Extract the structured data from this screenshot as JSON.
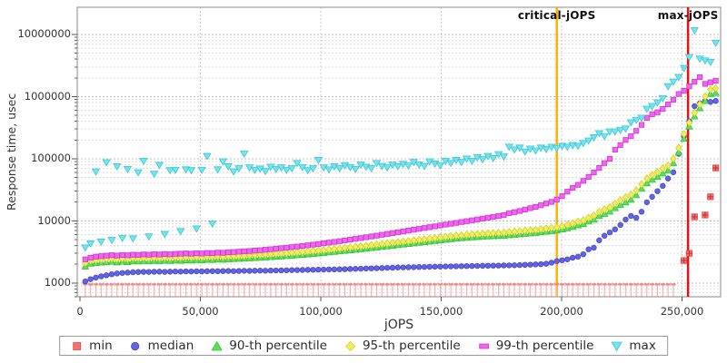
{
  "chart_data": {
    "type": "scatter",
    "title": "",
    "x_axis": {
      "label": "jOPS",
      "min": 0,
      "max": 267000,
      "ticks": [
        0,
        50000,
        100000,
        150000,
        200000,
        250000
      ],
      "tick_labels": [
        "0",
        "50,000",
        "100,000",
        "150,000",
        "200,000",
        "250,000"
      ],
      "grid": true
    },
    "y_axis": {
      "label": "Response time, usec",
      "scale": "log",
      "min": 600,
      "max": 27400000,
      "ticks": [
        1000,
        10000,
        100000,
        1000000,
        10000000
      ],
      "tick_labels": [
        "1000",
        "10000",
        "100000",
        "1000000",
        "10000000"
      ],
      "grid": true
    },
    "annotations": [
      {
        "label": "critical-jOPS",
        "x": 198000,
        "color": "#ffb000"
      },
      {
        "label": "max-jOPS",
        "x": 252500,
        "color": "#e01212"
      }
    ],
    "legend_position": "bottom-center",
    "jops": {
      "start": 2200,
      "step": 2200,
      "count": 120
    },
    "series": [
      {
        "name": "min",
        "marker": "impulse-square",
        "legend_marker": "square",
        "color": "#f87070",
        "stroke": "#e04848",
        "stem_color": "#ffb0b0",
        "cap_color": "#f08080",
        "cross_color": "#c03030",
        "values": [
          950,
          950,
          950,
          950,
          950,
          950,
          950,
          950,
          950,
          950,
          950,
          950,
          950,
          950,
          950,
          950,
          950,
          950,
          950,
          950,
          950,
          950,
          950,
          950,
          950,
          950,
          950,
          950,
          950,
          950,
          950,
          950,
          950,
          950,
          950,
          950,
          950,
          950,
          950,
          950,
          950,
          950,
          950,
          950,
          950,
          950,
          950,
          950,
          950,
          950,
          950,
          950,
          950,
          950,
          950,
          950,
          950,
          950,
          950,
          950,
          950,
          950,
          950,
          950,
          950,
          950,
          950,
          950,
          950,
          950,
          950,
          950,
          950,
          950,
          950,
          950,
          950,
          950,
          950,
          950,
          950,
          950,
          950,
          950,
          950,
          950,
          950,
          950,
          950,
          950,
          950,
          950,
          950,
          950,
          950,
          950,
          950,
          950,
          950,
          950,
          950,
          950,
          950,
          950,
          950,
          950,
          950,
          950,
          950,
          950,
          950,
          950,
          null,
          2300,
          3000,
          11600,
          null,
          12400,
          24400,
          71000
        ]
      },
      {
        "name": "median",
        "marker": "circle",
        "legend_marker": "circle",
        "color": "#6464e0",
        "stroke": "#4646c8",
        "values": [
          1060,
          1150,
          1220,
          1280,
          1330,
          1380,
          1420,
          1450,
          1470,
          1490,
          1500,
          1510,
          1505,
          1515,
          1520,
          1510,
          1520,
          1530,
          1525,
          1535,
          1530,
          1540,
          1535,
          1545,
          1550,
          1545,
          1555,
          1560,
          1550,
          1560,
          1570,
          1565,
          1575,
          1580,
          1575,
          1585,
          1590,
          1595,
          1600,
          1610,
          1615,
          1620,
          1625,
          1630,
          1640,
          1645,
          1650,
          1655,
          1660,
          1670,
          1680,
          1690,
          1700,
          1710,
          1720,
          1730,
          1740,
          1750,
          1760,
          1775,
          1780,
          1790,
          1795,
          1805,
          1810,
          1820,
          1830,
          1835,
          1845,
          1850,
          1855,
          1860,
          1870,
          1875,
          1880,
          1890,
          1895,
          1900,
          1905,
          1915,
          1920,
          1930,
          1940,
          1955,
          1970,
          1990,
          2010,
          2040,
          2120,
          2250,
          2320,
          2400,
          2550,
          2650,
          2900,
          3480,
          3700,
          4870,
          5760,
          6500,
          7300,
          8600,
          10500,
          12000,
          11200,
          14000,
          19900,
          24400,
          30000,
          36500,
          48000,
          60500,
          120000,
          230000,
          400000,
          700000,
          780000,
          850000,
          820000,
          850000
        ]
      },
      {
        "name": "90-th percentile",
        "marker": "triangle-up",
        "legend_marker": "triangle-up",
        "color": "#5ce05c",
        "stroke": "#38c038",
        "values": [
          1850,
          2050,
          2100,
          2140,
          2170,
          2200,
          2150,
          2220,
          2180,
          2250,
          2230,
          2270,
          2240,
          2280,
          2260,
          2300,
          2270,
          2310,
          2290,
          2330,
          2310,
          2350,
          2330,
          2370,
          2360,
          2400,
          2380,
          2420,
          2440,
          2460,
          2480,
          2500,
          2530,
          2560,
          2590,
          2620,
          2650,
          2690,
          2730,
          2770,
          2810,
          2850,
          2900,
          2950,
          3000,
          3060,
          3120,
          3180,
          3240,
          3300,
          3370,
          3440,
          3510,
          3580,
          3660,
          3740,
          3820,
          3900,
          3990,
          4080,
          4170,
          4260,
          4360,
          4460,
          4560,
          4660,
          4760,
          4870,
          4980,
          5090,
          5200,
          5280,
          5360,
          5440,
          5520,
          5600,
          5650,
          5700,
          5750,
          5800,
          5900,
          6000,
          6100,
          6200,
          6300,
          6400,
          6550,
          6700,
          6850,
          7000,
          7300,
          7600,
          8000,
          8500,
          8900,
          9800,
          10500,
          12000,
          13000,
          14100,
          16000,
          18000,
          19900,
          22000,
          26000,
          33000,
          40300,
          46000,
          51200,
          58000,
          64600,
          84700,
          126000,
          210000,
          330000,
          480000,
          650000,
          850000,
          1100000,
          1150000
        ]
      },
      {
        "name": "95-th percentile",
        "marker": "diamond",
        "legend_marker": "diamond",
        "color": "#f0f055",
        "stroke": "#d0d028",
        "values": [
          2100,
          2300,
          2350,
          2400,
          2430,
          2460,
          2420,
          2480,
          2450,
          2520,
          2500,
          2540,
          2510,
          2550,
          2530,
          2570,
          2540,
          2580,
          2560,
          2600,
          2580,
          2620,
          2600,
          2640,
          2630,
          2670,
          2650,
          2690,
          2710,
          2730,
          2750,
          2780,
          2810,
          2840,
          2880,
          2910,
          2950,
          2990,
          3030,
          3080,
          3120,
          3170,
          3220,
          3280,
          3330,
          3390,
          3460,
          3530,
          3600,
          3670,
          3740,
          3820,
          3900,
          3980,
          4070,
          4160,
          4250,
          4340,
          4440,
          4540,
          4640,
          4740,
          4850,
          4960,
          5070,
          5180,
          5300,
          5420,
          5540,
          5660,
          5790,
          5880,
          5970,
          6060,
          6150,
          6240,
          6300,
          6350,
          6410,
          6470,
          6600,
          6720,
          6840,
          6960,
          7080,
          7200,
          7350,
          7500,
          7700,
          7900,
          8200,
          8600,
          9100,
          9700,
          10200,
          11200,
          12200,
          14000,
          15300,
          16600,
          19000,
          21500,
          24000,
          26500,
          31000,
          39000,
          48000,
          55000,
          61000,
          70000,
          78000,
          100000,
          150000,
          250000,
          380000,
          550000,
          750000,
          1000000,
          1300000,
          1360000
        ]
      },
      {
        "name": "99-th percentile",
        "marker": "square",
        "legend_marker": "rect",
        "color": "#ee66ee",
        "stroke": "#d038d0",
        "values": [
          2400,
          2550,
          2650,
          2700,
          2750,
          2800,
          2760,
          2820,
          2790,
          2850,
          2830,
          2880,
          2850,
          2900,
          2870,
          2920,
          2890,
          2940,
          2960,
          2990,
          2960,
          3010,
          2980,
          3040,
          3020,
          3080,
          3060,
          3120,
          3150,
          3190,
          3230,
          3270,
          3320,
          3370,
          3430,
          3490,
          3560,
          3630,
          3700,
          3780,
          3860,
          3950,
          4040,
          4140,
          4240,
          4350,
          4460,
          4580,
          4710,
          4840,
          4980,
          5130,
          5280,
          5440,
          5610,
          5780,
          5960,
          6150,
          6340,
          6540,
          6750,
          6970,
          7190,
          7420,
          7660,
          7910,
          8160,
          8430,
          8700,
          8980,
          9270,
          9570,
          9880,
          10200,
          10530,
          10870,
          11220,
          11580,
          11950,
          12340,
          13300,
          13800,
          14400,
          15200,
          16000,
          16800,
          17800,
          19000,
          20200,
          22000,
          25000,
          29500,
          34000,
          38000,
          44000,
          51000,
          60000,
          71000,
          85000,
          100000,
          140000,
          166000,
          200000,
          230000,
          280000,
          350000,
          455000,
          520000,
          560000,
          633000,
          750000,
          890000,
          1100000,
          1240000,
          1460000,
          1730000,
          2050000,
          1600000,
          1700000,
          1800000
        ]
      },
      {
        "name": "max",
        "marker": "triangle-down",
        "legend_marker": "triangle-down",
        "color": "#74e4ee",
        "stroke": "#3cc6d6",
        "values": [
          3700,
          4300,
          62000,
          4600,
          87000,
          4900,
          75000,
          5300,
          68000,
          5200,
          60000,
          92000,
          5600,
          57000,
          79000,
          6100,
          65000,
          66000,
          6800,
          67000,
          65000,
          7500,
          66000,
          110000,
          9000,
          67000,
          90000,
          75000,
          62000,
          70000,
          120000,
          72000,
          66000,
          69000,
          63000,
          74000,
          68000,
          72000,
          66000,
          70000,
          85000,
          73000,
          65000,
          70000,
          95000,
          72000,
          67000,
          75000,
          70000,
          78000,
          73000,
          68000,
          80000,
          74000,
          70000,
          85000,
          76000,
          72000,
          80000,
          75000,
          82000,
          77000,
          88000,
          80000,
          76000,
          90000,
          83000,
          78000,
          92000,
          85000,
          95000,
          88000,
          100000,
          92000,
          105000,
          98000,
          110000,
          102000,
          118000,
          108000,
          155000,
          140000,
          150000,
          130000,
          145000,
          135000,
          150000,
          142000,
          155000,
          148000,
          160000,
          155000,
          165000,
          160000,
          178000,
          195000,
          220000,
          256000,
          230000,
          273000,
          273000,
          290000,
          304000,
          384000,
          420000,
          455000,
          633000,
          700000,
          800000,
          940000,
          1460000,
          1730000,
          2050000,
          2870000,
          4300000,
          11600000,
          4060000,
          3800000,
          3600000,
          7300000
        ]
      }
    ]
  }
}
